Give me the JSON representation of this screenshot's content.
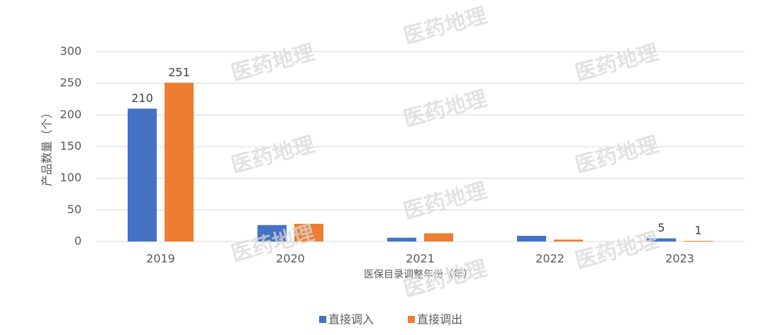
{
  "chart_data": {
    "type": "bar",
    "watermark": "医药地理",
    "x_label": "医保目录调整年份（年）",
    "y_label": "产品数量（个）",
    "categories": [
      "2019",
      "2020",
      "2021",
      "2022",
      "2023"
    ],
    "series": [
      {
        "name": "直接调入",
        "color": "#4472c4",
        "values": [
          210,
          26,
          6,
          9,
          5
        ],
        "value_labels": [
          "210",
          null,
          null,
          null,
          "5"
        ]
      },
      {
        "name": "直接调出",
        "color": "#ed7d31",
        "values": [
          251,
          28,
          13,
          3,
          1
        ],
        "value_labels": [
          "251",
          null,
          null,
          null,
          "1"
        ]
      }
    ],
    "ylim": [
      0,
      300
    ],
    "yticks": [
      0,
      50,
      100,
      150,
      200,
      250,
      300
    ],
    "grid": true,
    "legend": "bottom"
  }
}
